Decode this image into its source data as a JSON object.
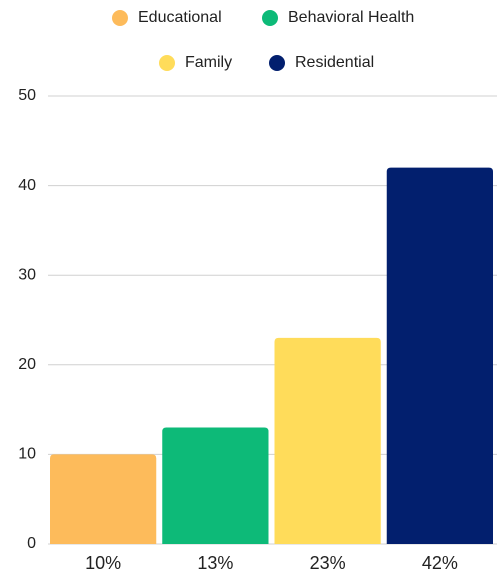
{
  "chart_data": {
    "type": "bar",
    "series": [
      {
        "name": "Educational",
        "color": "#fdbb5b",
        "values": [
          10
        ],
        "value_labels": [
          "10%"
        ]
      },
      {
        "name": "Behavioral Health",
        "color": "#0dba78",
        "values": [
          13
        ],
        "value_labels": [
          "13%"
        ]
      },
      {
        "name": "Family",
        "color": "#ffdc5a",
        "values": [
          23
        ],
        "value_labels": [
          "23%"
        ]
      },
      {
        "name": "Residential",
        "color": "#021f6e",
        "values": [
          42
        ],
        "value_labels": [
          "42%"
        ]
      }
    ],
    "ylim": [
      0,
      50
    ],
    "yticks": [
      0,
      10,
      20,
      30,
      40,
      50
    ],
    "grid": true,
    "legend": "top"
  }
}
